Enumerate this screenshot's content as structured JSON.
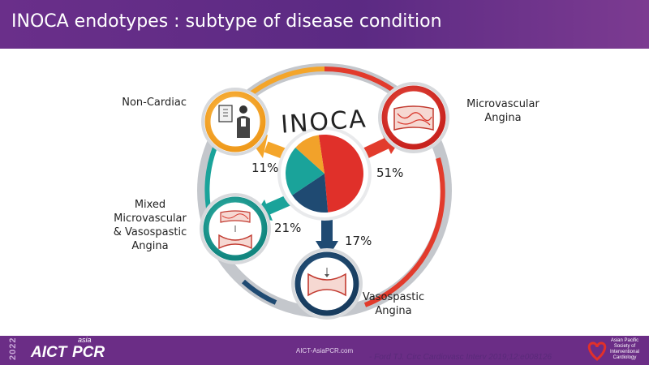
{
  "header": {
    "title": "INOCA endotypes : subtype of disease condition"
  },
  "center": {
    "label": "INOCA"
  },
  "endotypes": [
    {
      "name": "Non-Cardiac",
      "percent": "11%",
      "value": 11,
      "color": "#f2a22a",
      "icon": "doctor-xray-icon"
    },
    {
      "name": "Microvascular Angina",
      "percent": "51%",
      "value": 51,
      "color": "#e0302a",
      "icon": "microvessels-icon"
    },
    {
      "name": "Vasospastic Angina",
      "percent": "17%",
      "value": 17,
      "color": "#1f4a72",
      "icon": "vasospasm-icon"
    },
    {
      "name": "Mixed Microvascular & Vasospastic Angina",
      "percent": "21%",
      "value": 21,
      "color": "#1aa39a",
      "icon": "mixed-vessel-icon"
    }
  ],
  "labels": {
    "non_cardiac": "Non-Cardiac",
    "micro_1": "Microvascular",
    "micro_2": "Angina",
    "vaso_1": "Vasospastic",
    "vaso_2": "Angina",
    "mixed_1": "Mixed",
    "mixed_2": "Microvascular",
    "mixed_3": "& Vasospastic",
    "mixed_4": "Angina"
  },
  "footer": {
    "year": "2022",
    "logo_aict": "AICT",
    "logo_asia": "asia",
    "logo_pcr": "PCR",
    "url": "AICT-AsiaPCR.com",
    "citation": "- Ford TJ. Circ Cardiovasc Interv 2019;12:e008126",
    "apsic": "Asian Pacific Society of Interventional Cardiology"
  }
}
